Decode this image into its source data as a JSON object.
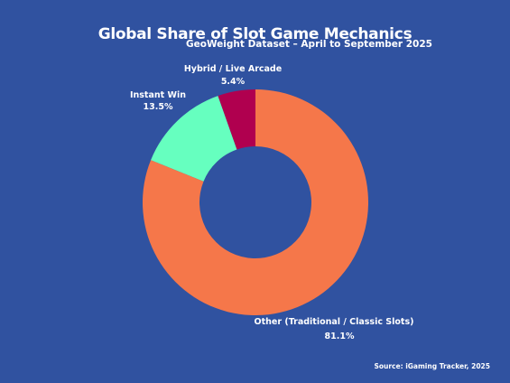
{
  "chart_data": {
    "type": "pie",
    "donut": true,
    "title": "Global Share of Slot Game Mechanics",
    "subtitle": "GeoWeight Dataset – April to September 2025",
    "source": "Source: iGaming Tracker, 2025",
    "slices": [
      {
        "label": "Hybrid / Live Arcade",
        "value": 5.4,
        "value_label": "5.4%",
        "color": "#b0004f"
      },
      {
        "label": "Instant Win",
        "value": 13.5,
        "value_label": "13.5%",
        "color": "#66ffbf"
      },
      {
        "label": "Other (Traditional / Classic Slots)",
        "value": 81.1,
        "value_label": "81.1%",
        "color": "#f5774a"
      }
    ],
    "start": "12 o'clock",
    "direction": "counter-clockwise",
    "background_color": "#3052a0",
    "legend": "none"
  }
}
